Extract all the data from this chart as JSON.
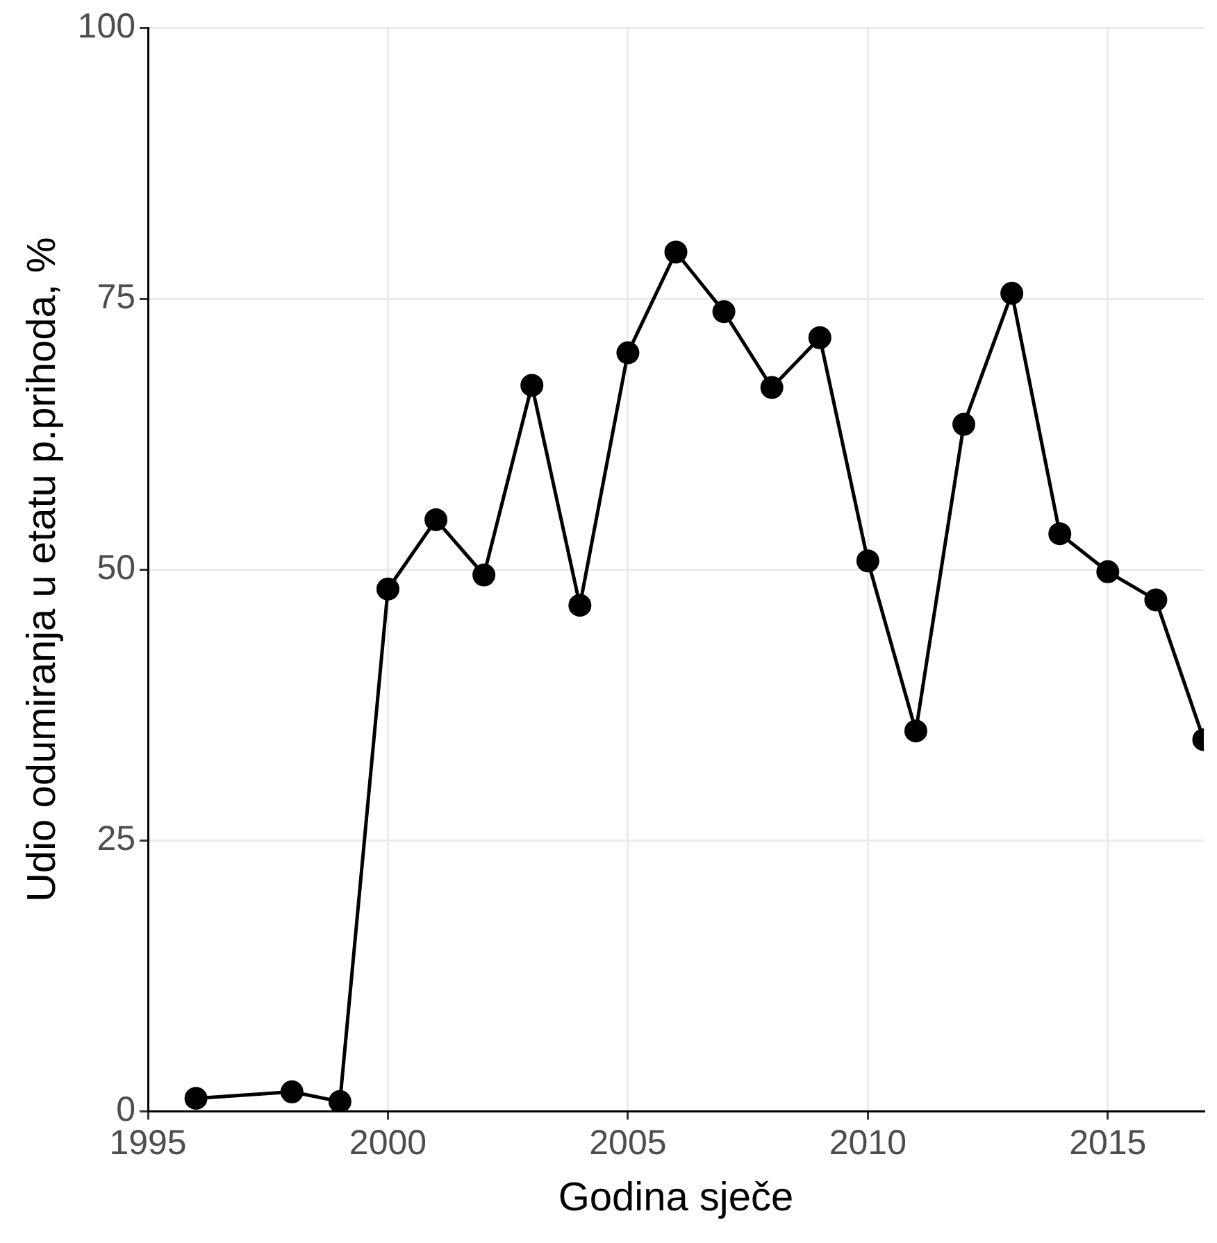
{
  "chart_data": {
    "type": "line",
    "xlabel": "Godina sječe",
    "ylabel": "Udio odumiranja u etatu p.prihoda, %",
    "x": [
      1996,
      1998,
      1999,
      2000,
      2001,
      2002,
      2003,
      2004,
      2005,
      2006,
      2007,
      2008,
      2009,
      2010,
      2011,
      2012,
      2013,
      2014,
      2015,
      2016,
      2017
    ],
    "series": [
      {
        "color": "#000000",
        "values": [
          1.2,
          1.8,
          0.9,
          48.2,
          54.6,
          49.5,
          67,
          46.7,
          70,
          79.3,
          73.8,
          66.8,
          71.4,
          50.8,
          35.1,
          63.4,
          75.5,
          53.3,
          49.8,
          47.2,
          34.3
        ]
      }
    ],
    "xlim": [
      1995,
      2017
    ],
    "xticks": [
      1995,
      2000,
      2005,
      2010,
      2015
    ],
    "ylim": [
      0,
      100
    ],
    "yticks": [
      0,
      25,
      50,
      75,
      100
    ],
    "grid": true,
    "legend": false,
    "marker": "circle",
    "line_style": "solid"
  }
}
